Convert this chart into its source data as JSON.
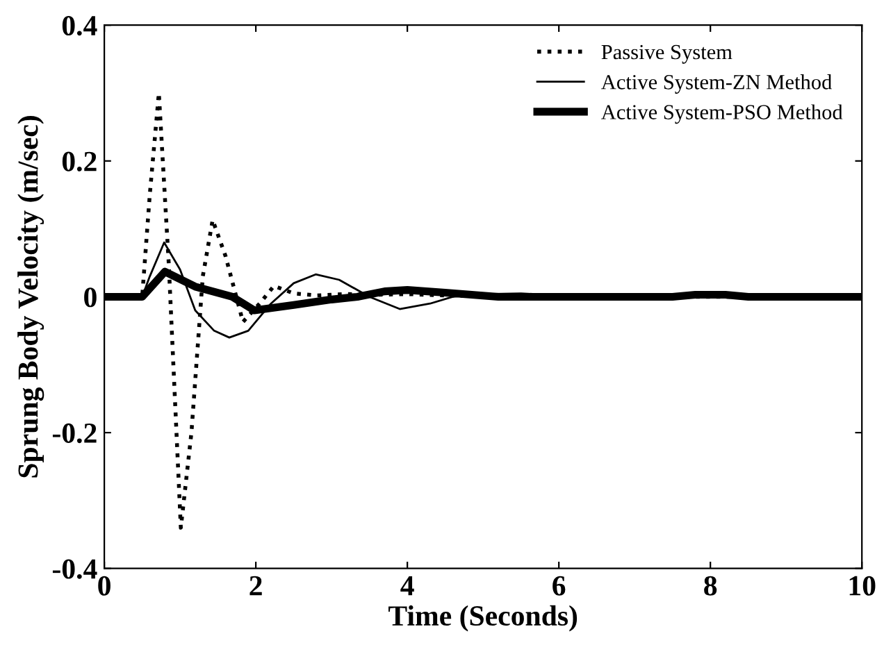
{
  "chart_data": {
    "type": "line",
    "xlabel": "Time (Seconds)",
    "ylabel": "Sprung Body Velocity (m/sec)",
    "xlim": [
      0,
      10
    ],
    "ylim": [
      -0.4,
      0.4
    ],
    "xticks": [
      0,
      2,
      4,
      6,
      8,
      10
    ],
    "yticks": [
      -0.4,
      -0.2,
      0,
      0.2,
      0.4
    ],
    "legend": "top right",
    "grid": false,
    "marker": "none",
    "series": [
      {
        "name": "Passive System",
        "color": "#000000",
        "line_style": "dotted",
        "x": [
          0,
          0.5,
          0.6,
          0.72,
          0.85,
          1.01,
          1.15,
          1.3,
          1.43,
          1.6,
          1.83,
          2.05,
          2.24,
          2.5,
          2.8,
          3.2,
          3.6,
          4.0,
          4.5,
          5.0,
          6,
          7,
          8,
          10
        ],
        "values": [
          0,
          0,
          0.15,
          0.3,
          0.05,
          -0.34,
          -0.2,
          0.03,
          0.113,
          0.06,
          -0.037,
          -0.01,
          0.016,
          0.005,
          0.002,
          0.004,
          0.003,
          0.004,
          0.002,
          0.001,
          0,
          0,
          0,
          0
        ]
      },
      {
        "name": "Active System-ZN Method",
        "color": "#000000",
        "line_style": "solid",
        "x": [
          0,
          0.5,
          0.6,
          0.79,
          1.0,
          1.2,
          1.45,
          1.65,
          1.9,
          2.2,
          2.5,
          2.79,
          3.1,
          3.5,
          3.9,
          4.3,
          4.6,
          5.0,
          5.5,
          6.0,
          7,
          8,
          10
        ],
        "values": [
          0,
          0,
          0.03,
          0.08,
          0.04,
          -0.02,
          -0.05,
          -0.06,
          -0.05,
          -0.01,
          0.02,
          0.033,
          0.025,
          0.0,
          -0.018,
          -0.01,
          0,
          0.004,
          0.005,
          0.002,
          0,
          0,
          0
        ]
      },
      {
        "name": "Active System-PSO Method",
        "color": "#000000",
        "line_style": "solid",
        "x": [
          0,
          0.5,
          0.8,
          1.2,
          1.69,
          1.98,
          2.5,
          3.0,
          3.34,
          3.7,
          4.0,
          4.5,
          5.2,
          6,
          7.5,
          7.8,
          8.2,
          8.5,
          10
        ],
        "values": [
          0,
          0,
          0.037,
          0.015,
          0,
          -0.02,
          -0.012,
          -0.004,
          0,
          0.008,
          0.01,
          0.006,
          0,
          0,
          0,
          0.003,
          0.003,
          0,
          0
        ]
      }
    ]
  }
}
